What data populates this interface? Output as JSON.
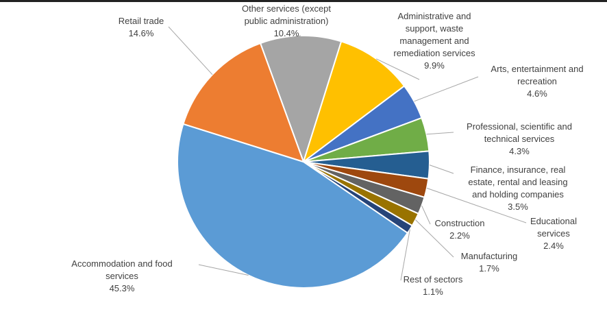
{
  "chart_data": {
    "type": "pie",
    "title": "",
    "start_angle_deg": -20,
    "direction": "clockwise",
    "slices": [
      {
        "name": "Other services (except public administration)",
        "label_lines": [
          "Other services (except",
          "public administration)"
        ],
        "value_label": "10.4%",
        "value": 10.4,
        "color": "#A5A5A5"
      },
      {
        "name": "Administrative and support, waste management and remediation services",
        "label_lines": [
          "Administrative and",
          "support, waste",
          "management and",
          "remediation services"
        ],
        "value_label": "9.9%",
        "value": 9.9,
        "color": "#FFC000"
      },
      {
        "name": "Arts, entertainment and recreation",
        "label_lines": [
          "Arts, entertainment and",
          "recreation"
        ],
        "value_label": "4.6%",
        "value": 4.6,
        "color": "#4472C4"
      },
      {
        "name": "Professional, scientific and technical services",
        "label_lines": [
          "Professional, scientific and",
          "technical services"
        ],
        "value_label": "4.3%",
        "value": 4.3,
        "color": "#70AD47"
      },
      {
        "name": "Finance, insurance, real estate, rental and leasing and holding companies",
        "label_lines": [
          "Finance, insurance, real",
          "estate, rental and leasing",
          "and holding companies"
        ],
        "value_label": "3.5%",
        "value": 3.5,
        "color": "#255E91"
      },
      {
        "name": "Educational services",
        "label_lines": [
          "Educational",
          "services"
        ],
        "value_label": "2.4%",
        "value": 2.4,
        "color": "#9E480E"
      },
      {
        "name": "Construction",
        "label_lines": [
          "Construction"
        ],
        "value_label": "2.2%",
        "value": 2.2,
        "color": "#636363"
      },
      {
        "name": "Manufacturing",
        "label_lines": [
          "Manufacturing"
        ],
        "value_label": "1.7%",
        "value": 1.7,
        "color": "#997300"
      },
      {
        "name": "Rest of sectors",
        "label_lines": [
          "Rest of sectors"
        ],
        "value_label": "1.1%",
        "value": 1.1,
        "color": "#264478"
      },
      {
        "name": "Accommodation and food services",
        "label_lines": [
          "Accommodation and food",
          "services"
        ],
        "value_label": "45.3%",
        "value": 45.3,
        "color": "#5B9BD5"
      },
      {
        "name": "Retail trade",
        "label_lines": [
          "Retail trade"
        ],
        "value_label": "14.6%",
        "value": 14.6,
        "color": "#ED7D31"
      }
    ]
  }
}
